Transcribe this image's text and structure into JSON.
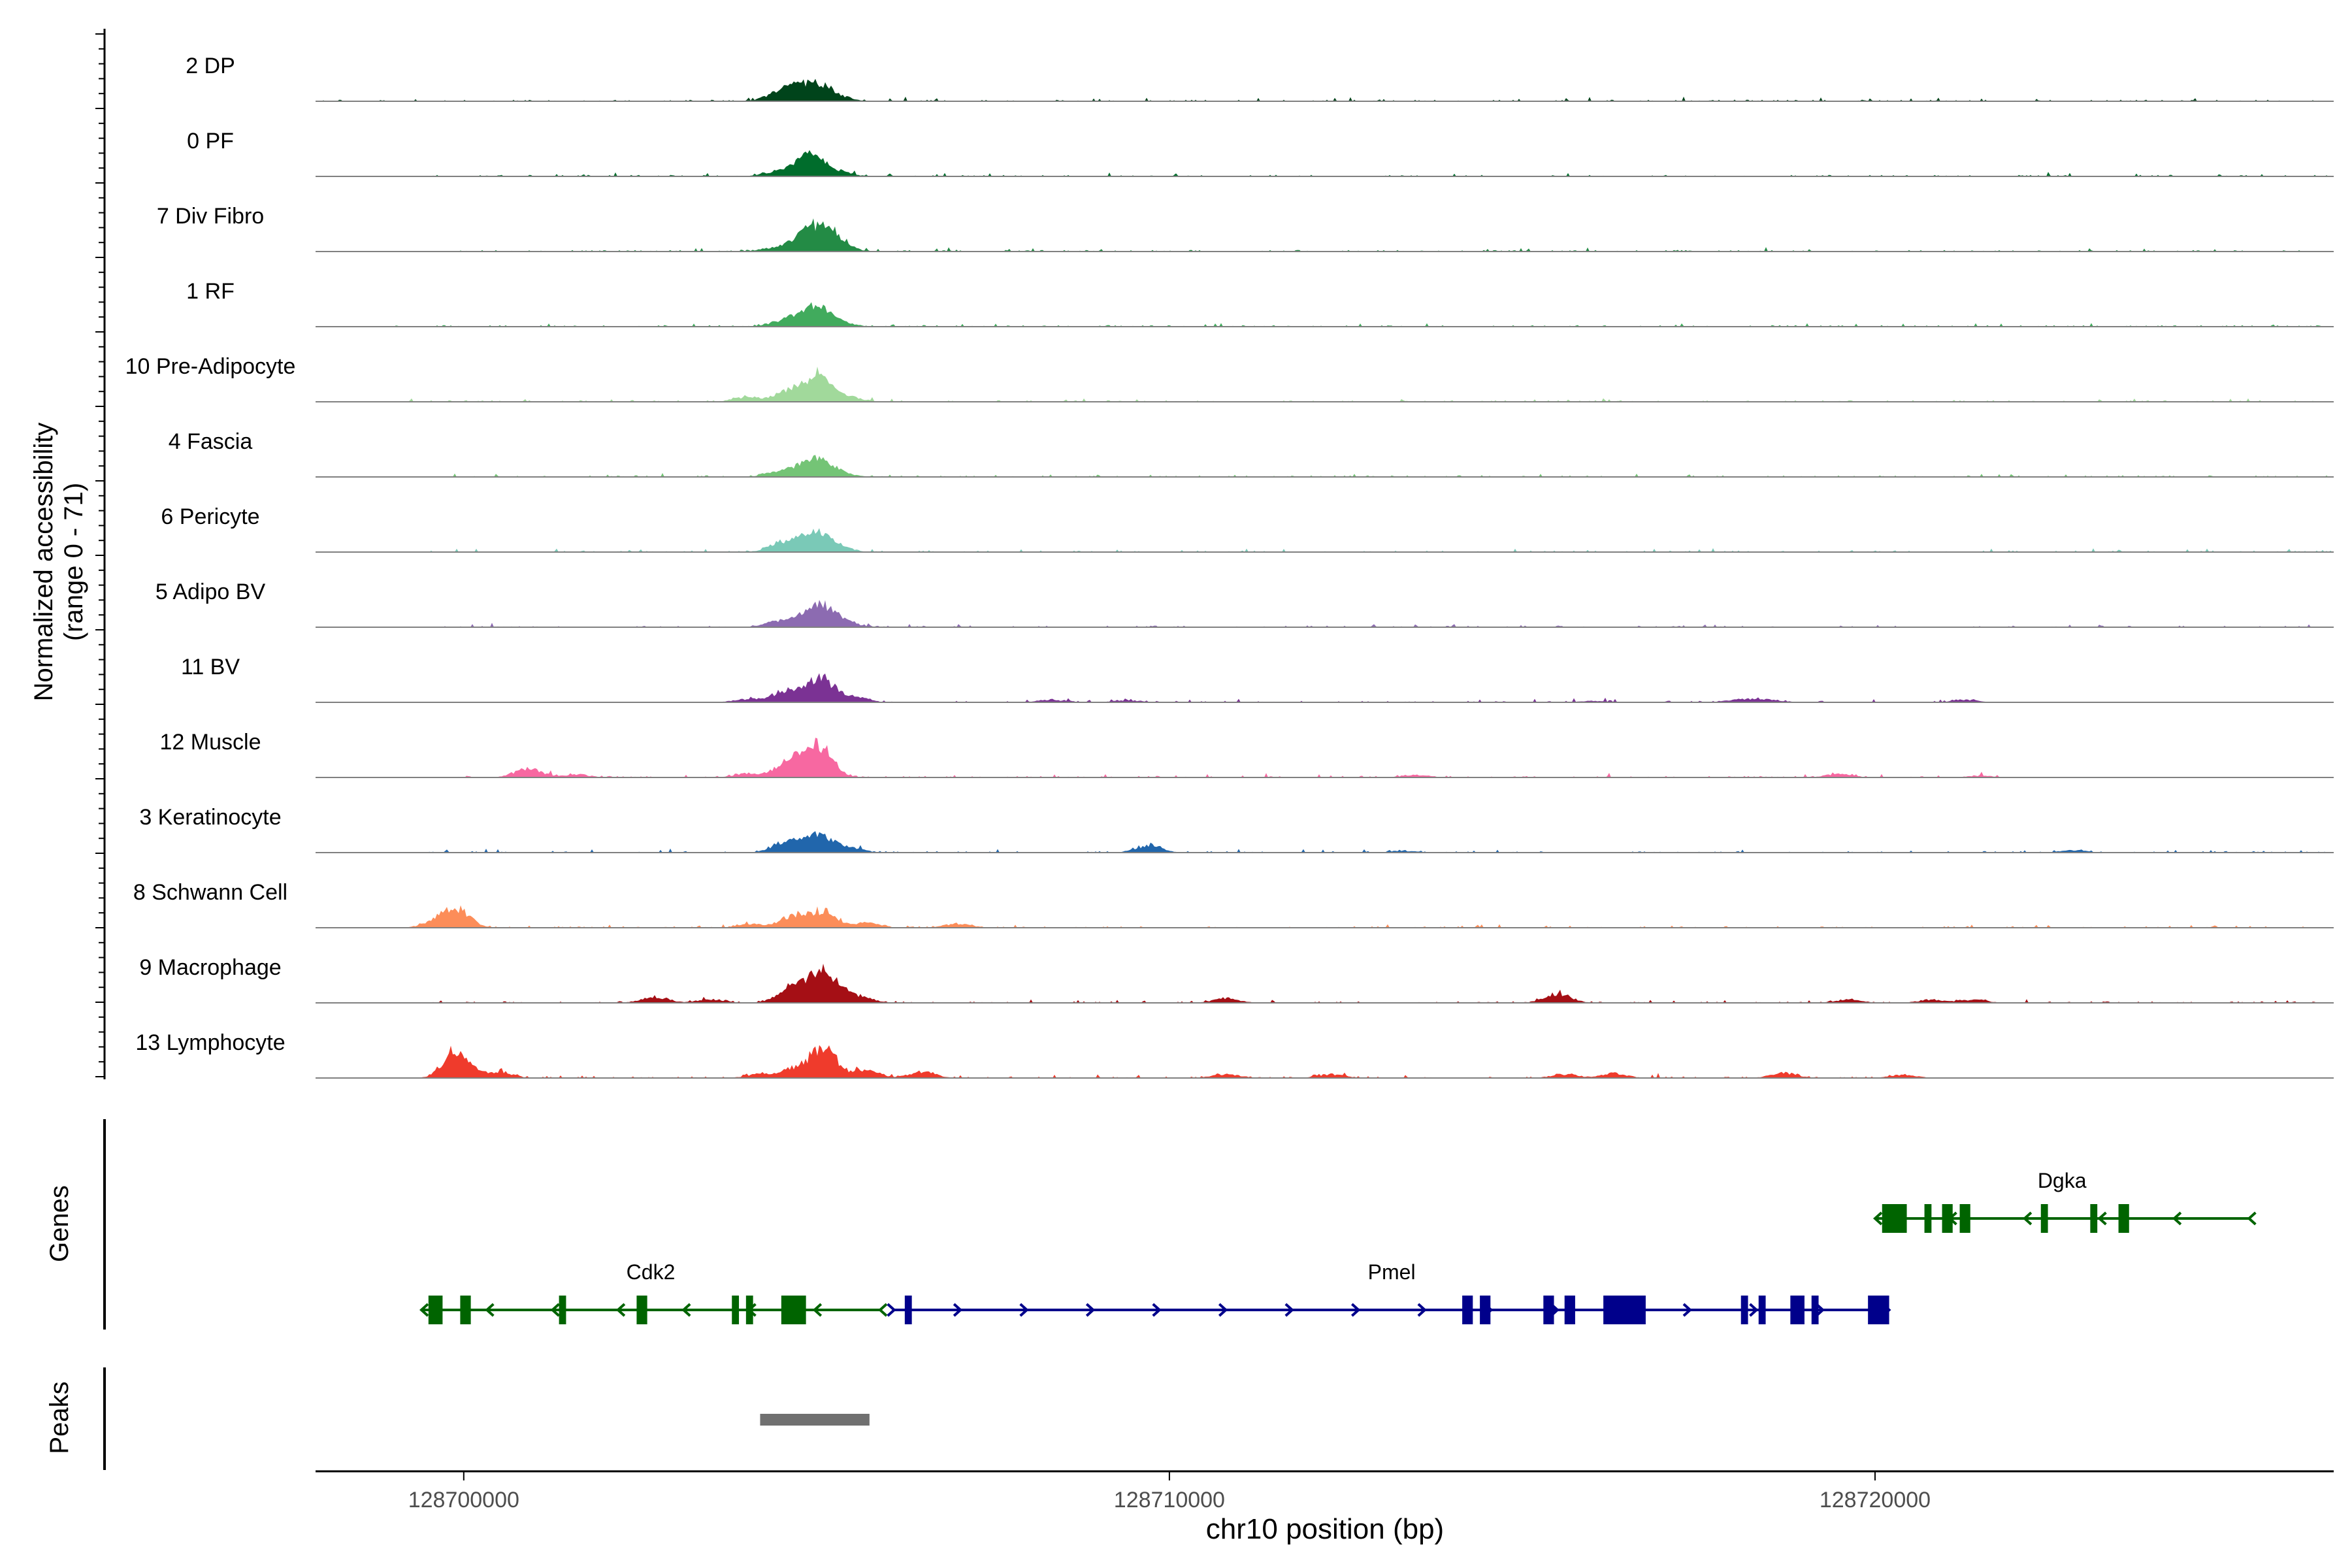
{
  "chart_data": {
    "type": "area",
    "title": "",
    "ylabel": "Normalized accessibility",
    "ylabel_range": "(range 0 - 71)",
    "xlabel": "chr10 position (bp)",
    "xlim": [
      128697900,
      128726500
    ],
    "ylim": [
      0,
      71
    ],
    "x_ticks": [
      128700000,
      128710000,
      128720000
    ],
    "x_tick_labels": [
      "128700000",
      "128710000",
      "128720000"
    ],
    "grid": false,
    "legend": "none",
    "baseline_color": "#808080",
    "tracks": [
      {
        "name": "2 DP",
        "color": "#00441b",
        "peaks": [
          [
            128704460,
            25
          ],
          [
            128704750,
            40
          ],
          [
            128705050,
            45
          ],
          [
            128705350,
            10
          ]
        ],
        "noise": [
          128698000,
          128726500
        ]
      },
      {
        "name": "0 PF",
        "color": "#006d2c",
        "peaks": [
          [
            128704420,
            14
          ],
          [
            128704800,
            38
          ],
          [
            128705000,
            44
          ],
          [
            128705350,
            10
          ]
        ],
        "noise": [
          128699500,
          128726500
        ]
      },
      {
        "name": "7 Div Fibro",
        "color": "#238b45",
        "peaks": [
          [
            128704400,
            12
          ],
          [
            128704800,
            40
          ],
          [
            128705050,
            58
          ],
          [
            128705300,
            30
          ]
        ],
        "noise": [
          128699900,
          128726300
        ]
      },
      {
        "name": "1 RF",
        "color": "#41ab5d",
        "peaks": [
          [
            128704500,
            14
          ],
          [
            128704800,
            30
          ],
          [
            128705050,
            48
          ],
          [
            128705350,
            10
          ]
        ],
        "noise": [
          128699000,
          128726500
        ]
      },
      {
        "name": "10 Pre-Adipocyte",
        "color": "#a1d99b",
        "peaks": [
          [
            128704000,
            15
          ],
          [
            128704550,
            25
          ],
          [
            128704850,
            35
          ],
          [
            128705080,
            65
          ],
          [
            128705500,
            12
          ]
        ],
        "noise": [
          128699200,
          128726300
        ]
      },
      {
        "name": "4 Fascia",
        "color": "#74c476",
        "peaks": [
          [
            128704450,
            14
          ],
          [
            128704800,
            28
          ],
          [
            128705050,
            45
          ],
          [
            128705350,
            10
          ]
        ],
        "noise": [
          128699600,
          128726500
        ]
      },
      {
        "name": "6 Pericyte",
        "color": "#7ac9b7",
        "peaks": [
          [
            128704500,
            30
          ],
          [
            128704850,
            28
          ],
          [
            128705050,
            42
          ],
          [
            128705300,
            15
          ]
        ],
        "noise": [
          128699500,
          128726500
        ]
      },
      {
        "name": "5 Adipo BV",
        "color": "#8c6bb1",
        "peaks": [
          [
            128704450,
            18
          ],
          [
            128704850,
            28
          ],
          [
            128705100,
            55
          ],
          [
            128705400,
            12
          ]
        ],
        "noise": [
          128699600,
          128726500
        ]
      },
      {
        "name": "11 BV",
        "color": "#7b3294",
        "peaks": [
          [
            128704000,
            10
          ],
          [
            128704550,
            35
          ],
          [
            128704900,
            22
          ],
          [
            128705100,
            65
          ],
          [
            128705550,
            15
          ],
          [
            128708300,
            8
          ],
          [
            128709400,
            6
          ],
          [
            128716000,
            5
          ],
          [
            128718100,
            10
          ],
          [
            128718500,
            8
          ],
          [
            128721300,
            8
          ]
        ],
        "noise": [
          128703800,
          128721500
        ]
      },
      {
        "name": "12 Muscle",
        "color": "#f768a1",
        "peaks": [
          [
            128700900,
            28
          ],
          [
            128701600,
            10
          ],
          [
            128704000,
            12
          ],
          [
            128704500,
            20
          ],
          [
            128704750,
            48
          ],
          [
            128705050,
            90
          ],
          [
            128713500,
            8
          ],
          [
            128719500,
            12
          ],
          [
            128721500,
            6
          ]
        ],
        "noise": [
          128699600,
          128721800
        ]
      },
      {
        "name": "3 Keratinocyte",
        "color": "#2166ac",
        "peaks": [
          [
            128704550,
            28
          ],
          [
            128704850,
            25
          ],
          [
            128705100,
            45
          ],
          [
            128705500,
            12
          ],
          [
            128709700,
            22
          ],
          [
            128713300,
            6
          ],
          [
            128722800,
            8
          ]
        ],
        "noise": [
          128699500,
          128726500
        ]
      },
      {
        "name": "8 Schwann Cell",
        "color": "#fc8d59",
        "peaks": [
          [
            128699600,
            18
          ],
          [
            128699900,
            60
          ],
          [
            128704100,
            12
          ],
          [
            128704700,
            38
          ],
          [
            128705100,
            50
          ],
          [
            128705700,
            15
          ],
          [
            128707000,
            12
          ]
        ],
        "noise": [
          128699300,
          128726300
        ]
      },
      {
        "name": "9 Macrophage",
        "color": "#a50f15",
        "peaks": [
          [
            128702700,
            20
          ],
          [
            128703500,
            12
          ],
          [
            128704600,
            38
          ],
          [
            128704900,
            40
          ],
          [
            128705150,
            85
          ],
          [
            128705600,
            20
          ],
          [
            128710800,
            15
          ],
          [
            128715500,
            30
          ],
          [
            128719600,
            10
          ],
          [
            128720800,
            10
          ],
          [
            128721400,
            10
          ]
        ],
        "noise": [
          128699500,
          128726500
        ]
      },
      {
        "name": "13 Lymphocyte",
        "color": "#ef3b2c",
        "peaks": [
          [
            128699900,
            90
          ],
          [
            128700500,
            20
          ],
          [
            128704200,
            12
          ],
          [
            128704700,
            30
          ],
          [
            128705100,
            92
          ],
          [
            128705700,
            25
          ],
          [
            128706500,
            20
          ],
          [
            128710800,
            12
          ],
          [
            128712300,
            12
          ],
          [
            128715600,
            12
          ],
          [
            128716300,
            15
          ],
          [
            128718700,
            15
          ],
          [
            128720400,
            10
          ]
        ],
        "noise": [
          128699600,
          128720600
        ]
      }
    ],
    "genes_label": "Genes",
    "genes": [
      {
        "name": "Cdk2",
        "color": "#006400",
        "strand": "-",
        "start": 128699400,
        "end": 128705900,
        "exons": [
          [
            128699500,
            128699700
          ],
          [
            128699950,
            128700100
          ],
          [
            128701350,
            128701450
          ],
          [
            128702450,
            128702600
          ],
          [
            128703800,
            128703900
          ],
          [
            128704000,
            128704100
          ],
          [
            128704500,
            128704850
          ]
        ]
      },
      {
        "name": "Pmel",
        "color": "#00008b",
        "strand": "+",
        "start": 128706100,
        "end": 128720200,
        "exons": [
          [
            128706250,
            128706350
          ],
          [
            128714150,
            128714300
          ],
          [
            128714400,
            128714550
          ],
          [
            128715300,
            128715450
          ],
          [
            128715600,
            128715750
          ],
          [
            128716150,
            128716750
          ],
          [
            128718100,
            128718200
          ],
          [
            128718350,
            128718450
          ],
          [
            128718800,
            128719000
          ],
          [
            128719100,
            128719200
          ],
          [
            128719900,
            128720200
          ]
        ]
      },
      {
        "name": "Dgka",
        "color": "#006400",
        "strand": "-",
        "start": 128720000,
        "end": 128725300,
        "exons": [
          [
            128720100,
            128720450
          ],
          [
            128720700,
            128720800
          ],
          [
            128720950,
            128721100
          ],
          [
            128721200,
            128721350
          ],
          [
            128722350,
            128722450
          ],
          [
            128723050,
            128723150
          ],
          [
            128723450,
            128723600
          ]
        ]
      }
    ],
    "peaks_label": "Peaks",
    "peak_regions": [
      [
        128704200,
        128705750
      ]
    ],
    "peak_color": "#707070"
  }
}
